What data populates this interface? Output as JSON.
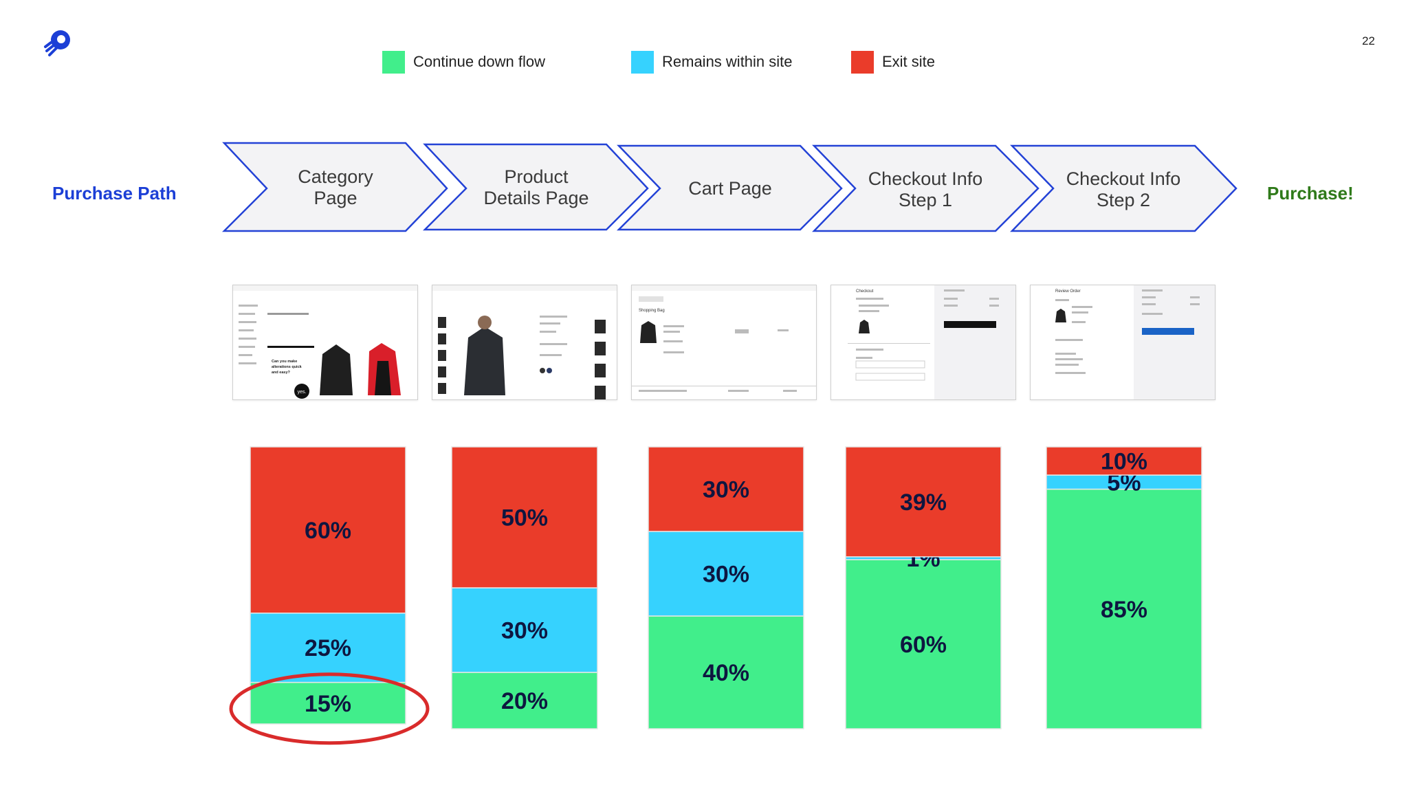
{
  "page_number": "22",
  "legend": [
    {
      "label": "Continue down flow",
      "color": "#41ee8b"
    },
    {
      "label": "Remains within site",
      "color": "#36d2fe"
    },
    {
      "label": "Exit site",
      "color": "#ea3c2a"
    }
  ],
  "path_label": "Purchase Path",
  "purchase_label": "Purchase!",
  "steps": [
    {
      "line1": "Category",
      "line2": "Page"
    },
    {
      "line1": "Product",
      "line2": "Details Page"
    },
    {
      "line1": "Cart Page",
      "line2": ""
    },
    {
      "line1": "Checkout Info",
      "line2": "Step 1"
    },
    {
      "line1": "Checkout Info",
      "line2": "Step 2"
    }
  ],
  "thumbnails": [
    {
      "caption": "Category page screenshot",
      "small_text": "Can you make alterations quick and easy?",
      "badge": "yes."
    },
    {
      "caption": "Product details page screenshot"
    },
    {
      "caption": "Cart page screenshot",
      "small_text": "Shopping Bag"
    },
    {
      "caption": "Checkout step 1 screenshot",
      "small_text": "Checkout"
    },
    {
      "caption": "Checkout step 2 screenshot",
      "small_text": "Review Order"
    }
  ],
  "chart_data": {
    "type": "bar",
    "stacked": true,
    "categories": [
      "Category Page",
      "Product Details Page",
      "Cart Page",
      "Checkout Info Step 1",
      "Checkout Info Step 2"
    ],
    "series": [
      {
        "name": "Continue down flow",
        "color": "#41ee8b",
        "values": [
          15,
          20,
          40,
          60,
          85
        ],
        "labels": [
          "15%",
          "20%",
          "40%",
          "60%",
          "85%"
        ]
      },
      {
        "name": "Remains within site",
        "color": "#36d2fe",
        "values": [
          25,
          30,
          30,
          1,
          5
        ],
        "labels": [
          "25%",
          "30%",
          "30%",
          "1%",
          "5%"
        ]
      },
      {
        "name": "Exit site",
        "color": "#ea3c2a",
        "values": [
          60,
          50,
          30,
          39,
          10
        ],
        "labels": [
          "60%",
          "50%",
          "30%",
          "39%",
          "10%"
        ]
      }
    ],
    "ylim": [
      0,
      100
    ],
    "highlight": {
      "category_index": 0,
      "series": "Continue down flow",
      "style": "red-ellipse"
    }
  }
}
